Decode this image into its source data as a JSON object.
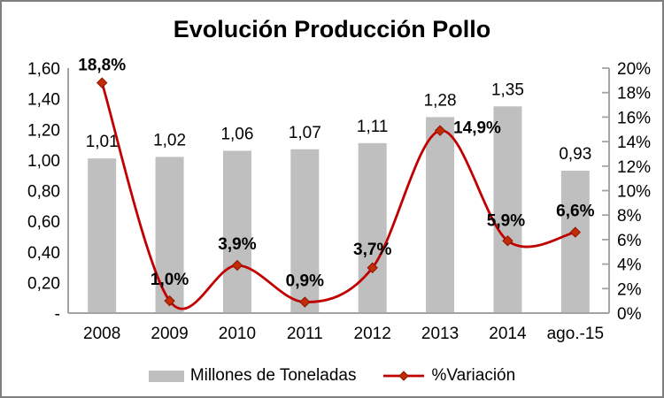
{
  "colors": {
    "bar": "#BFBFBF",
    "line": "#C00000",
    "marker_fill": "#C32B06",
    "marker_stroke": "#8E1600",
    "axis": "#A3A3A3",
    "text": "#000000",
    "frame_border": "#7F7F7F"
  },
  "chart_data": {
    "type": "bar+line combo",
    "title": "Evolución Producción Pollo",
    "categories": [
      "2008",
      "2009",
      "2010",
      "2011",
      "2012",
      "2013",
      "2014",
      "ago.-15"
    ],
    "series": [
      {
        "name": "Millones de Toneladas",
        "type": "bar",
        "axis": "left",
        "values": [
          1.01,
          1.02,
          1.06,
          1.07,
          1.11,
          1.28,
          1.35,
          0.93
        ],
        "labels": [
          "1,01",
          "1,02",
          "1,06",
          "1,07",
          "1,11",
          "1,28",
          "1,35",
          "0,93"
        ]
      },
      {
        "name": "%Variación",
        "type": "line",
        "axis": "right",
        "values": [
          18.8,
          1.0,
          3.9,
          0.9,
          3.7,
          14.9,
          5.9,
          6.6
        ],
        "labels": [
          "18,8%",
          "1,0%",
          "3,9%",
          "0,9%",
          "3,7%",
          "14,9%",
          "5,9%",
          "6,6%"
        ]
      }
    ],
    "left_axis": {
      "min": 0,
      "max": 1.6,
      "step": 0.2,
      "tick_labels": [
        "-",
        "0,20",
        "0,40",
        "0,60",
        "0,80",
        "1,00",
        "1,20",
        "1,40",
        "1,60"
      ]
    },
    "right_axis": {
      "min": 0,
      "max": 20,
      "step": 2,
      "tick_labels": [
        "0%",
        "2%",
        "4%",
        "6%",
        "8%",
        "10%",
        "12%",
        "14%",
        "16%",
        "18%",
        "20%"
      ]
    },
    "grid": false,
    "legend_position": "bottom"
  }
}
